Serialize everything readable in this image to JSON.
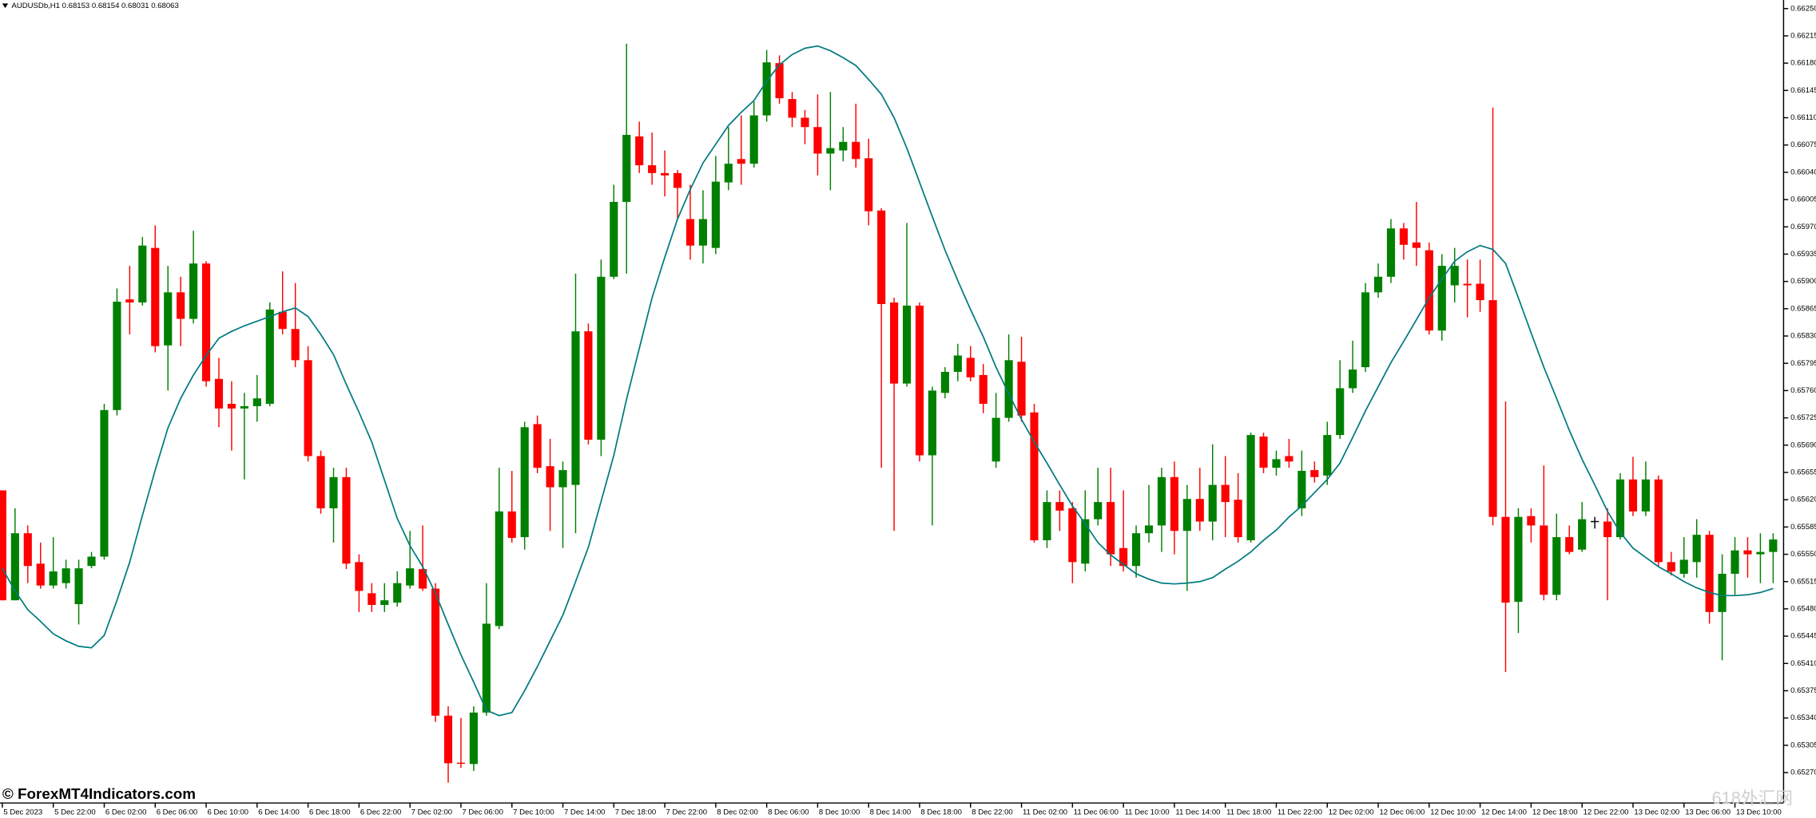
{
  "chart_data": {
    "type": "candlestick",
    "title": "AUDUSDb,H1  0.68153 0.68154 0.68031 0.68063",
    "watermark": "© ForexMT4Indicators.com",
    "watermark_2": "618外汇网",
    "up_color": "#008000",
    "down_color": "#ff0000",
    "categories": [
      "5 Dec 2023",
      null,
      null,
      null,
      "5 Dec 22:00",
      null,
      null,
      null,
      "6 Dec 02:00",
      null,
      null,
      null,
      "6 Dec 06:00",
      null,
      null,
      null,
      "6 Dec 10:00",
      null,
      null,
      null,
      "6 Dec 14:00",
      null,
      null,
      null,
      "6 Dec 18:00",
      null,
      null,
      null,
      "6 Dec 22:00",
      null,
      null,
      null,
      "7 Dec 02:00",
      null,
      null,
      null,
      "7 Dec 06:00",
      null,
      null,
      null,
      "7 Dec 10:00",
      null,
      null,
      null,
      "7 Dec 14:00",
      null,
      null,
      null,
      "7 Dec 18:00",
      null,
      null,
      null,
      "7 Dec 22:00",
      null,
      null,
      null,
      "8 Dec 02:00",
      null,
      null,
      null,
      "8 Dec 06:00",
      null,
      null,
      null,
      "8 Dec 10:00",
      null,
      null,
      null,
      "8 Dec 14:00",
      null,
      null,
      null,
      "8 Dec 18:00",
      null,
      null,
      null,
      "8 Dec 22:00",
      null,
      null,
      null,
      "11 Dec 02:00",
      null,
      null,
      null,
      "11 Dec 06:00",
      null,
      null,
      null,
      "11 Dec 10:00",
      null,
      null,
      null,
      "11 Dec 14:00",
      null,
      null,
      null,
      "11 Dec 18:00",
      null,
      null,
      null,
      "11 Dec 22:00",
      null,
      null,
      null,
      "12 Dec 02:00",
      null,
      null,
      null,
      "12 Dec 06:00",
      null,
      null,
      null,
      "12 Dec 10:00",
      null,
      null,
      null,
      "12 Dec 14:00",
      null,
      null,
      null,
      "12 Dec 18:00",
      null,
      null,
      null,
      "12 Dec 22:00",
      null,
      null,
      null,
      "13 Dec 02:00",
      null,
      null,
      null,
      "13 Dec 06:00",
      null,
      null,
      null,
      "13 Dec 10:00",
      null,
      null,
      null
    ],
    "open": [
      0.65632,
      0.65491,
      0.65577,
      0.65538,
      0.6551,
      0.65513,
      0.65486,
      0.65535,
      0.65547,
      0.65735,
      0.65877,
      0.65873,
      0.65943,
      0.65818,
      0.65886,
      0.65852,
      0.65923,
      0.65775,
      0.65743,
      0.65737,
      0.6574,
      0.65743,
      0.65861,
      0.65839,
      0.65799,
      0.65676,
      0.65609,
      0.65649,
      0.6554,
      0.655,
      0.65485,
      0.65488,
      0.6551,
      0.65531,
      0.65506,
      0.65343,
      0.65282,
      0.65281,
      0.65347,
      0.65458,
      0.65605,
      0.65572,
      0.65717,
      0.65663,
      0.65636,
      0.65639,
      0.65836,
      0.65697,
      0.65906,
      0.66002,
      0.66086,
      0.66049,
      0.66039,
      0.66039,
      0.6598,
      0.65946,
      0.65943,
      0.66027,
      0.66057,
      0.66051,
      0.66113,
      0.6618,
      0.66134,
      0.6611,
      0.66098,
      0.66064,
      0.66068,
      0.66079,
      0.66058,
      0.65991,
      0.65873,
      0.65769,
      0.65869,
      0.65677,
      0.65757,
      0.65784,
      0.65802,
      0.6578,
      0.65669,
      0.65725,
      0.65797,
      0.65732,
      0.65568,
      0.65617,
      0.65609,
      0.65538,
      0.65595,
      0.65617,
      0.65558,
      0.65535,
      0.65577,
      0.65587,
      0.65649,
      0.6558,
      0.65621,
      0.65592,
      0.65639,
      0.6562,
      0.65568,
      0.65701,
      0.65661,
      0.65676,
      0.65609,
      0.65658,
      0.65651,
      0.65703,
      0.65763,
      0.6579,
      0.65886,
      0.65906,
      0.65968,
      0.6595,
      0.6594,
      0.65837,
      0.65895,
      0.65897,
      0.65897,
      0.65876,
      0.65598,
      0.65489,
      0.65599,
      0.65587,
      0.65498,
      0.65572,
      0.65556,
      0.65592,
      0.65592,
      0.65572,
      0.65646,
      0.65605,
      0.65646,
      0.6554,
      0.65525,
      0.6554,
      0.65575,
      0.65476,
      0.65525,
      0.65555,
      0.6555,
      0.65553
    ],
    "high": [
      0.65632,
      0.65609,
      0.65587,
      0.65565,
      0.65572,
      0.65543,
      0.65543,
      0.65553,
      0.65743,
      0.65891,
      0.6592,
      0.65957,
      0.65972,
      0.6592,
      0.65906,
      0.65965,
      0.65926,
      0.65802,
      0.65772,
      0.65757,
      0.6578,
      0.65873,
      0.65913,
      0.65898,
      0.65817,
      0.65683,
      0.65661,
      0.65661,
      0.6555,
      0.65513,
      0.65513,
      0.65528,
      0.6558,
      0.65587,
      0.65513,
      0.65355,
      0.6534,
      0.65355,
      0.65513,
      0.65661,
      0.65657,
      0.6572,
      0.65728,
      0.65698,
      0.65669,
      0.6591,
      0.65846,
      0.65928,
      0.66024,
      0.66205,
      0.66105,
      0.66091,
      0.66068,
      0.66043,
      0.66024,
      0.66017,
      0.66061,
      0.66098,
      0.66113,
      0.66131,
      0.66197,
      0.6619,
      0.66143,
      0.6612,
      0.6614,
      0.66143,
      0.66098,
      0.66128,
      0.66083,
      0.65994,
      0.65879,
      0.65975,
      0.65873,
      0.65765,
      0.6579,
      0.6582,
      0.65817,
      0.65794,
      0.65757,
      0.65832,
      0.65829,
      0.65743,
      0.65632,
      0.65632,
      0.65617,
      0.65632,
      0.65661,
      0.65661,
      0.65632,
      0.65587,
      0.65639,
      0.65661,
      0.65669,
      0.65639,
      0.65661,
      0.65691,
      0.65676,
      0.65654,
      0.65706,
      0.65706,
      0.65683,
      0.65698,
      0.65683,
      0.65669,
      0.6572,
      0.65799,
      0.65824,
      0.65898,
      0.65923,
      0.6598,
      0.65975,
      0.66002,
      0.6595,
      0.65935,
      0.65943,
      0.65928,
      0.65928,
      0.66123,
      0.65746,
      0.65609,
      0.65609,
      0.65664,
      0.65602,
      0.65587,
      0.65617,
      0.65598,
      0.65609,
      0.65654,
      0.65675,
      0.65669,
      0.65651,
      0.65553,
      0.65572,
      0.65595,
      0.6558,
      0.6555,
      0.65572,
      0.65572,
      0.65577,
      0.65577
    ],
    "low": [
      0.65491,
      0.65491,
      0.65513,
      0.65506,
      0.65506,
      0.65506,
      0.6546,
      0.65532,
      0.65543,
      0.65728,
      0.65832,
      0.65869,
      0.65809,
      0.6576,
      0.65817,
      0.65846,
      0.65765,
      0.65713,
      0.65683,
      0.65646,
      0.6572,
      0.6574,
      0.65832,
      0.6579,
      0.65669,
      0.65602,
      0.65565,
      0.65531,
      0.65476,
      0.65476,
      0.65476,
      0.65483,
      0.65506,
      0.65503,
      0.65335,
      0.65257,
      0.65276,
      0.65272,
      0.65343,
      0.65454,
      0.65565,
      0.65556,
      0.65654,
      0.6558,
      0.65558,
      0.65577,
      0.65691,
      0.65676,
      0.65903,
      0.6591,
      0.66039,
      0.66024,
      0.66009,
      0.6598,
      0.65928,
      0.65923,
      0.65935,
      0.66017,
      0.66024,
      0.66046,
      0.66105,
      0.66128,
      0.66098,
      0.66076,
      0.66036,
      0.66017,
      0.66054,
      0.66046,
      0.65972,
      0.65661,
      0.6558,
      0.65765,
      0.65669,
      0.65587,
      0.6575,
      0.65772,
      0.65772,
      0.65731,
      0.65661,
      0.6572,
      0.6572,
      0.65565,
      0.65558,
      0.6558,
      0.65513,
      0.65528,
      0.65587,
      0.65535,
      0.65528,
      0.6552,
      0.65565,
      0.65553,
      0.6555,
      0.65503,
      0.6558,
      0.65568,
      0.65572,
      0.65565,
      0.65565,
      0.65654,
      0.65651,
      0.65661,
      0.65599,
      0.65642,
      0.65639,
      0.65698,
      0.65757,
      0.65784,
      0.65879,
      0.65898,
      0.65928,
      0.6592,
      0.65832,
      0.65824,
      0.65873,
      0.65854,
      0.65861,
      0.65587,
      0.65399,
      0.65449,
      0.65565,
      0.65491,
      0.65491,
      0.6555,
      0.65553,
      0.65583,
      0.65491,
      0.65569,
      0.65599,
      0.65599,
      0.65535,
      0.65523,
      0.6552,
      0.6552,
      0.65461,
      0.65414,
      0.65498,
      0.6552,
      0.65513,
      0.65513
    ],
    "close": [
      0.65491,
      0.65577,
      0.65535,
      0.6551,
      0.65528,
      0.65532,
      0.65532,
      0.65547,
      0.65735,
      0.65874,
      0.65873,
      0.65946,
      0.65817,
      0.65886,
      0.65852,
      0.65923,
      0.65772,
      0.65737,
      0.65737,
      0.6574,
      0.6575,
      0.65864,
      0.65839,
      0.65799,
      0.65676,
      0.65609,
      0.65649,
      0.65538,
      0.65503,
      0.65485,
      0.65491,
      0.65513,
      0.65532,
      0.65506,
      0.65343,
      0.65282,
      0.65281,
      0.65347,
      0.65461,
      0.65605,
      0.65571,
      0.65713,
      0.65661,
      0.65636,
      0.65658,
      0.65836,
      0.65697,
      0.65906,
      0.66002,
      0.66088,
      0.66049,
      0.66039,
      0.66036,
      0.6602,
      0.65946,
      0.6598,
      0.66028,
      0.66051,
      0.66051,
      0.66113,
      0.66181,
      0.66135,
      0.6611,
      0.66098,
      0.66064,
      0.66071,
      0.66079,
      0.66057,
      0.6599,
      0.65871,
      0.65769,
      0.65869,
      0.65677,
      0.6576,
      0.65784,
      0.65805,
      0.65777,
      0.65743,
      0.65725,
      0.65799,
      0.65728,
      0.65568,
      0.65617,
      0.65606,
      0.6554,
      0.65595,
      0.65617,
      0.6555,
      0.65535,
      0.65577,
      0.65587,
      0.65649,
      0.6558,
      0.65621,
      0.65592,
      0.65639,
      0.65617,
      0.65572,
      0.65703,
      0.65661,
      0.65672,
      0.65669,
      0.65657,
      0.65649,
      0.65703,
      0.65763,
      0.65787,
      0.65886,
      0.65906,
      0.65968,
      0.65947,
      0.65943,
      0.65837,
      0.6592,
      0.6592,
      0.65895,
      0.65876,
      0.65598,
      0.65488,
      0.65598,
      0.65587,
      0.65498,
      0.65572,
      0.65553,
      0.65595,
      0.65592,
      0.65572,
      0.65646,
      0.65605,
      0.65646,
      0.6554,
      0.65528,
      0.65543,
      0.65575,
      0.65476,
      0.65525,
      0.65555,
      0.6555,
      0.65553,
      0.65569
    ],
    "ma": {
      "color": "#007b80",
      "values": [
        0.65532,
        0.65503,
        0.65479,
        0.65464,
        0.65448,
        0.65439,
        0.65432,
        0.6543,
        0.65446,
        0.65491,
        0.6554,
        0.656,
        0.65658,
        0.65712,
        0.6575,
        0.6578,
        0.65805,
        0.65827,
        0.65836,
        0.65843,
        0.65849,
        0.65855,
        0.65861,
        0.65866,
        0.65855,
        0.65832,
        0.65806,
        0.65768,
        0.65732,
        0.65694,
        0.65645,
        0.65596,
        0.65561,
        0.65534,
        0.655,
        0.6546,
        0.65421,
        0.65386,
        0.6535,
        0.65343,
        0.65347,
        0.65375,
        0.65406,
        0.65439,
        0.65472,
        0.65515,
        0.65559,
        0.65618,
        0.65677,
        0.65749,
        0.65814,
        0.65879,
        0.65931,
        0.6598,
        0.66018,
        0.66052,
        0.66076,
        0.661,
        0.66117,
        0.66132,
        0.66157,
        0.66178,
        0.66191,
        0.66199,
        0.66202,
        0.66196,
        0.66187,
        0.66177,
        0.66159,
        0.6614,
        0.6611,
        0.66071,
        0.66027,
        0.65983,
        0.6594,
        0.65901,
        0.65864,
        0.65829,
        0.6579,
        0.65756,
        0.65723,
        0.65694,
        0.65667,
        0.65639,
        0.65612,
        0.65589,
        0.65565,
        0.65549,
        0.65537,
        0.65525,
        0.65518,
        0.65513,
        0.65512,
        0.65513,
        0.65515,
        0.6552,
        0.65531,
        0.65541,
        0.65553,
        0.65568,
        0.65581,
        0.65598,
        0.65612,
        0.65629,
        0.65646,
        0.65667,
        0.657,
        0.65734,
        0.65765,
        0.65796,
        0.65823,
        0.65851,
        0.65879,
        0.65903,
        0.65926,
        0.65938,
        0.65946,
        0.65941,
        0.65923,
        0.65879,
        0.65834,
        0.6579,
        0.6575,
        0.65709,
        0.65672,
        0.65639,
        0.65605,
        0.65578,
        0.65558,
        0.65546,
        0.65534,
        0.65525,
        0.65515,
        0.65507,
        0.65501,
        0.65497,
        0.65497,
        0.65498,
        0.65501,
        0.65506
      ]
    },
    "ylim": [
      0.65231,
      0.66261
    ],
    "yticks": [
      {
        "value": 0.6527,
        "label": "0.65270"
      },
      0.65305,
      {
        "value": 0.6534,
        "label": "0.65340"
      },
      0.65375,
      {
        "value": 0.6541,
        "label": "0.65410"
      },
      0.65445,
      {
        "value": 0.6548,
        "label": "0.65480"
      },
      0.65515,
      {
        "value": 0.6555,
        "label": "0.65550"
      },
      0.65585,
      {
        "value": 0.6562,
        "label": "0.65620"
      },
      0.65655,
      {
        "value": 0.6569,
        "label": "0.65690"
      },
      0.65725,
      {
        "value": 0.6576,
        "label": "0.65760"
      },
      0.65795,
      {
        "value": 0.6583,
        "label": "0.65830"
      },
      0.65865,
      {
        "value": 0.659,
        "label": "0.65900"
      },
      0.65935,
      {
        "value": 0.6597,
        "label": "0.65970"
      },
      0.66005,
      {
        "value": 0.6604,
        "label": "0.66040"
      },
      0.66075,
      {
        "value": 0.6611,
        "label": "0.66110"
      },
      0.66145,
      {
        "value": 0.6618,
        "label": "0.66180"
      },
      0.66215,
      {
        "value": 0.6625,
        "label": "0.66250"
      }
    ],
    "grid": false
  }
}
